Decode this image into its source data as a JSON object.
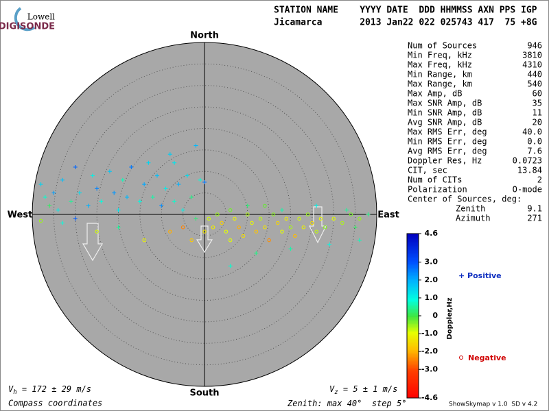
{
  "logo": {
    "top": "Lowell",
    "bottom": "DIGISONDE"
  },
  "header": {
    "line1": "STATION NAME    YYYY DATE  DDD HHMMSS AXN PPS IGP",
    "line2": "Jicamarca       2013 Jan22 022 025743 417  75 +8G"
  },
  "stats": [
    [
      "Num of Sources",
      "946"
    ],
    [
      "Min Freq, kHz",
      "3810"
    ],
    [
      "Max Freq, kHz",
      "4310"
    ],
    [
      "Min Range, km",
      "440"
    ],
    [
      "Max Range, km",
      "540"
    ],
    [
      "Max Amp, dB",
      "60"
    ],
    [
      "Max SNR Amp, dB",
      "35"
    ],
    [
      "Min SNR Amp, dB",
      "11"
    ],
    [
      "Avg SNR Amp, dB",
      "20"
    ],
    [
      "Max RMS Err, deg",
      "40.0"
    ],
    [
      "Min RMS Err, deg",
      "0.0"
    ],
    [
      "Avg RMS Err, deg",
      "7.6"
    ],
    [
      "Doppler Res, Hz",
      "0.0723"
    ],
    [
      "CIT, sec",
      "13.84"
    ],
    [
      "Num of CITs",
      "2"
    ],
    [
      "Polarization",
      "O-mode"
    ],
    [
      "Center of Sources, deg:"
    ],
    [
      "Zenith",
      "9.1"
    ],
    [
      "Azimuth",
      "271"
    ]
  ],
  "compass": {
    "north": "North",
    "south": "South",
    "west": "West",
    "east": "East"
  },
  "colorbar": {
    "label": "Doppler,Hz",
    "ticks": [
      4.6,
      {
        "value": 3,
        "label": "3.0"
      },
      {
        "value": 2,
        "label": "2.0"
      },
      {
        "value": 1,
        "label": "1.0"
      },
      0,
      {
        "value": -1,
        "label": "-1.0"
      },
      {
        "value": -2,
        "label": "-2.0"
      },
      {
        "value": -3,
        "label": "-3.0"
      },
      -4.6
    ]
  },
  "legend": {
    "positive": "Positive",
    "negative": "Negative"
  },
  "footer": {
    "vh": {
      "v": "V",
      "sub": "h",
      "rest": " = 172 ± 29 m/s"
    },
    "vz": {
      "v": "V",
      "sub": "z",
      "rest": " = 5 ± 1 m/s"
    },
    "left": "Compass coordinates",
    "zenith": {
      "prefix": "Zenith: max ",
      "max": 40,
      "mid": "°  step ",
      "step": 5,
      "suffix": "°"
    },
    "version": "ShowSkymap v 1.0  SD v 4.2"
  },
  "skymap": {
    "points": [
      [
        -38,
        7,
        1.5
      ],
      [
        -37,
        4,
        0.8
      ],
      [
        -35,
        5,
        2.2
      ],
      [
        -34,
        1,
        1.2
      ],
      [
        -33,
        8,
        1.8
      ],
      [
        -31,
        3,
        0.5
      ],
      [
        -30,
        11,
        2.8
      ],
      [
        -29,
        5,
        1.4
      ],
      [
        -27,
        2,
        2.0
      ],
      [
        -26,
        9,
        1.1
      ],
      [
        -25,
        6,
        2.5
      ],
      [
        -24,
        3,
        0.9
      ],
      [
        -22,
        10,
        1.7
      ],
      [
        -21,
        5,
        2.3
      ],
      [
        -20,
        1,
        1.3
      ],
      [
        -19,
        8,
        0.7
      ],
      [
        -18,
        4,
        1.9
      ],
      [
        -17,
        11,
        2.6
      ],
      [
        -15,
        3,
        1.0
      ],
      [
        -14,
        7,
        2.1
      ],
      [
        -13,
        12,
        1.5
      ],
      [
        -12,
        4,
        0.6
      ],
      [
        -11,
        9,
        1.8
      ],
      [
        -10,
        2,
        2.4
      ],
      [
        -9,
        6,
        1.2
      ],
      [
        -8,
        14,
        1.6
      ],
      [
        -7,
        3,
        0.8
      ],
      [
        -6,
        7,
        2.0
      ],
      [
        -5,
        1,
        1.1
      ],
      [
        -4,
        9,
        1.4
      ],
      [
        -3,
        4,
        0.4
      ],
      [
        -2,
        16,
        1.9
      ],
      [
        -2,
        -1,
        0.3
      ],
      [
        -20,
        -3,
        0.5
      ],
      [
        -30,
        -1,
        2.9
      ],
      [
        -36,
        2,
        0.2
      ],
      [
        -33,
        -2,
        0.9
      ],
      [
        -7,
        12,
        1.3
      ],
      [
        -1,
        8,
        0.9
      ],
      [
        0,
        7.5,
        2.6
      ],
      [
        1,
        -1,
        -0.8
      ],
      [
        2,
        -3,
        -1.2
      ],
      [
        3,
        0,
        -0.5
      ],
      [
        4,
        -2,
        -1.6
      ],
      [
        5,
        -4,
        -0.9
      ],
      [
        6,
        1,
        -0.3
      ],
      [
        7,
        -1,
        -1.1
      ],
      [
        8,
        -3,
        -2.0
      ],
      [
        9,
        -5,
        -1.4
      ],
      [
        10,
        0,
        -0.6
      ],
      [
        11,
        -2,
        -1.0
      ],
      [
        12,
        -4,
        -1.8
      ],
      [
        13,
        -1,
        -0.7
      ],
      [
        14,
        -3,
        -1.3
      ],
      [
        15,
        -6,
        -2.3
      ],
      [
        16,
        0,
        -0.4
      ],
      [
        17,
        -2,
        -1.5
      ],
      [
        18,
        -4,
        -0.9
      ],
      [
        19,
        -1,
        -1.2
      ],
      [
        20,
        -3,
        -0.6
      ],
      [
        21,
        -5,
        -1.9
      ],
      [
        22,
        -1,
        -0.8
      ],
      [
        23,
        -3,
        -1.1
      ],
      [
        24,
        0,
        -0.5
      ],
      [
        25,
        -2,
        -1.4
      ],
      [
        26,
        -4,
        -0.7
      ],
      [
        27,
        -1,
        -1.0
      ],
      [
        28,
        -3,
        -0.4
      ],
      [
        30,
        -1,
        -0.9
      ],
      [
        32,
        -2,
        -0.6
      ],
      [
        34,
        0,
        -0.3
      ],
      [
        36,
        -1,
        -0.5
      ],
      [
        -3,
        -6,
        -1.7
      ],
      [
        -5,
        -3,
        -2.4
      ],
      [
        0,
        -4,
        -1.3
      ],
      [
        6,
        -6,
        -0.9
      ],
      [
        14,
        2,
        -0.2
      ],
      [
        -14,
        -6,
        -1.1
      ],
      [
        -8,
        -4,
        -2.0
      ],
      [
        10,
        2,
        0.3
      ],
      [
        18,
        1,
        0.6
      ],
      [
        26,
        2,
        1.1
      ],
      [
        33,
        1,
        0.5
      ],
      [
        38,
        0,
        0.4
      ],
      [
        35,
        -3,
        0.2
      ],
      [
        29,
        -7,
        1.0
      ],
      [
        12,
        -9,
        0.4
      ],
      [
        6,
        -12,
        0.8
      ],
      [
        20,
        -8,
        0.6
      ],
      [
        36,
        -6,
        0.7
      ],
      [
        -38,
        -1.5,
        -0.5
      ],
      [
        -25,
        -4,
        -0.8
      ]
    ]
  }
}
